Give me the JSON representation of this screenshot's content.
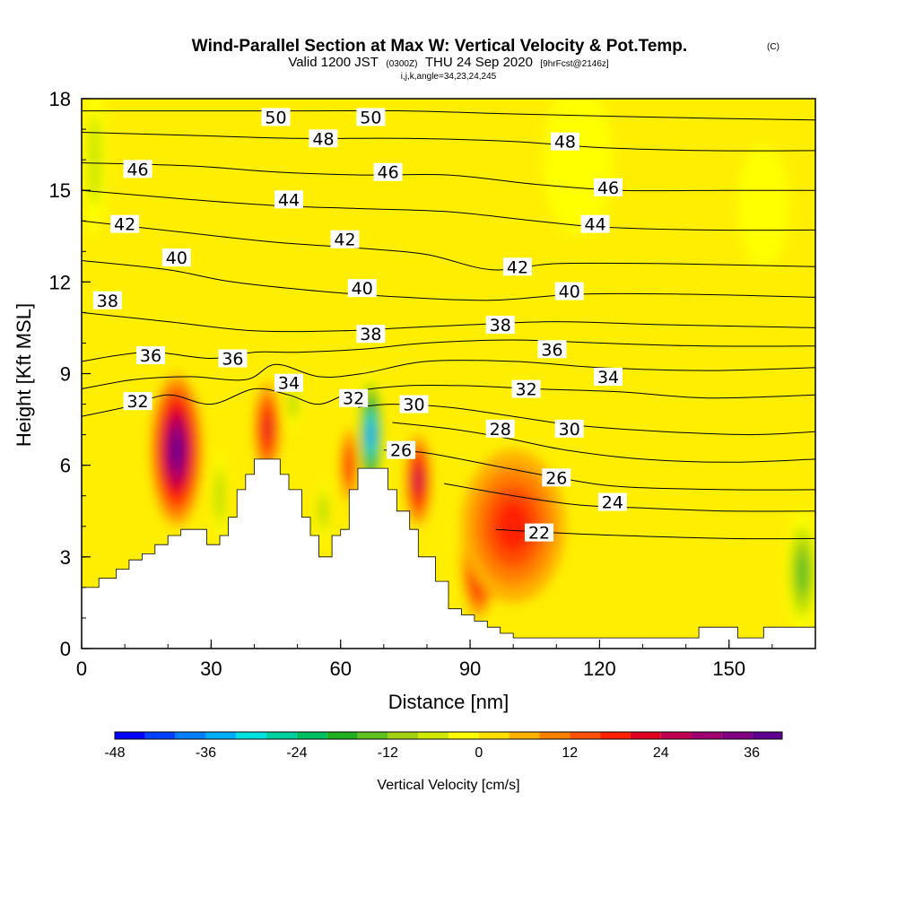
{
  "title": "Wind-Parallel Section at Max W: Vertical Velocity & Pot.Temp.",
  "title_mark": "(C)",
  "subtitle_parts": [
    "Valid 1200 JST",
    "(0300Z)",
    "THU 24 Sep 2020",
    "[9hrFcst@2146z]"
  ],
  "subtitle2": "i,j,k,angle=34,23,24,245",
  "chart_data": {
    "type": "heatmap",
    "title": "Wind-Parallel Section at Max W: Vertical Velocity & Pot.Temp.",
    "xlabel": "Distance [nm]",
    "ylabel": "Height [Kft MSL]",
    "xlim": [
      0,
      170
    ],
    "ylim": [
      0,
      18
    ],
    "xticks": [
      0,
      30,
      60,
      90,
      120,
      150
    ],
    "yticks": [
      0,
      3,
      6,
      9,
      12,
      15,
      18
    ],
    "colorbar": {
      "label": "Vertical Velocity [cm/s]",
      "min": -48,
      "max": 40,
      "step": 4,
      "tick_values": [
        -48,
        -36,
        -24,
        -12,
        0,
        12,
        24,
        36
      ],
      "colors": [
        "#0000ff",
        "#0040ff",
        "#0080ff",
        "#00b0ff",
        "#00e0e0",
        "#00d0a0",
        "#00c060",
        "#20b020",
        "#60c020",
        "#a0d010",
        "#d0e800",
        "#ffff00",
        "#ffe000",
        "#ffb000",
        "#ff8000",
        "#ff5000",
        "#ff2000",
        "#e00020",
        "#c00050",
        "#a00070",
        "#800080",
        "#600090"
      ]
    },
    "terrain": [
      [
        0,
        2
      ],
      [
        4,
        2
      ],
      [
        4,
        2.3
      ],
      [
        8,
        2.3
      ],
      [
        8,
        2.6
      ],
      [
        11,
        2.6
      ],
      [
        11,
        2.9
      ],
      [
        14,
        2.9
      ],
      [
        14,
        3.1
      ],
      [
        17,
        3.1
      ],
      [
        17,
        3.4
      ],
      [
        20,
        3.4
      ],
      [
        20,
        3.7
      ],
      [
        23,
        3.7
      ],
      [
        23,
        3.9
      ],
      [
        28,
        3.9
      ],
      [
        29,
        3.9
      ],
      [
        29,
        3.4
      ],
      [
        32,
        3.4
      ],
      [
        32,
        3.7
      ],
      [
        34,
        3.7
      ],
      [
        34,
        4.3
      ],
      [
        36,
        4.3
      ],
      [
        36,
        5.2
      ],
      [
        38,
        5.2
      ],
      [
        38,
        5.7
      ],
      [
        40,
        5.7
      ],
      [
        40,
        6.2
      ],
      [
        43,
        6.2
      ],
      [
        44,
        6.2
      ],
      [
        44,
        6.2
      ],
      [
        46,
        6.2
      ],
      [
        46,
        5.7
      ],
      [
        48,
        5.7
      ],
      [
        48,
        5.2
      ],
      [
        51,
        5.2
      ],
      [
        51,
        4.3
      ],
      [
        53,
        4.3
      ],
      [
        53,
        3.7
      ],
      [
        55,
        3.7
      ],
      [
        55,
        3.0
      ],
      [
        58,
        3.0
      ],
      [
        58,
        3.7
      ],
      [
        60,
        3.7
      ],
      [
        60,
        3.9
      ],
      [
        62,
        3.9
      ],
      [
        62,
        5.2
      ],
      [
        64,
        5.2
      ],
      [
        64,
        5.9
      ],
      [
        71,
        5.9
      ],
      [
        71,
        5.2
      ],
      [
        73,
        5.2
      ],
      [
        73,
        4.5
      ],
      [
        76,
        4.5
      ],
      [
        76,
        3.9
      ],
      [
        78,
        3.9
      ],
      [
        78,
        3.0
      ],
      [
        82,
        3.0
      ],
      [
        82,
        2.2
      ],
      [
        85,
        2.2
      ],
      [
        85,
        1.3
      ],
      [
        88,
        1.3
      ],
      [
        88,
        1.1
      ],
      [
        91,
        1.1
      ],
      [
        91,
        0.9
      ],
      [
        94,
        0.9
      ],
      [
        94,
        0.7
      ],
      [
        97,
        0.7
      ],
      [
        97,
        0.5
      ],
      [
        100,
        0.5
      ],
      [
        100,
        0.35
      ],
      [
        143,
        0.35
      ],
      [
        143,
        0.7
      ],
      [
        149,
        0.7
      ],
      [
        149,
        0.7
      ],
      [
        152,
        0.7
      ],
      [
        152,
        0.35
      ],
      [
        158,
        0.35
      ],
      [
        158,
        0.7
      ],
      [
        170,
        0.7
      ]
    ],
    "theta_contours": [
      {
        "level": 22,
        "points": [
          [
            96,
            3.9
          ],
          [
            108,
            3.8
          ],
          [
            125,
            3.7
          ],
          [
            150,
            3.6
          ],
          [
            170,
            3.6
          ]
        ]
      },
      {
        "level": 24,
        "points": [
          [
            84,
            5.4
          ],
          [
            100,
            5.0
          ],
          [
            115,
            4.7
          ],
          [
            130,
            4.6
          ],
          [
            150,
            4.5
          ],
          [
            170,
            4.5
          ]
        ]
      },
      {
        "level": 26,
        "points": [
          [
            70,
            6.5
          ],
          [
            80,
            6.4
          ],
          [
            95,
            6.0
          ],
          [
            110,
            5.6
          ],
          [
            125,
            5.3
          ],
          [
            150,
            5.2
          ],
          [
            170,
            5.2
          ]
        ]
      },
      {
        "level": 28,
        "points": [
          [
            72,
            7.4
          ],
          [
            85,
            7.2
          ],
          [
            98,
            6.9
          ],
          [
            112,
            6.5
          ],
          [
            130,
            6.2
          ],
          [
            150,
            6.1
          ],
          [
            170,
            6.2
          ]
        ]
      },
      {
        "level": 30,
        "points": [
          [
            64,
            7.9
          ],
          [
            72,
            8.0
          ],
          [
            85,
            7.9
          ],
          [
            100,
            7.6
          ],
          [
            115,
            7.3
          ],
          [
            135,
            7.1
          ],
          [
            155,
            7.0
          ],
          [
            170,
            7.1
          ]
        ]
      },
      {
        "level": 32,
        "points": [
          [
            0,
            7.6
          ],
          [
            10,
            7.9
          ],
          [
            20,
            8.3
          ],
          [
            30,
            8.0
          ],
          [
            40,
            8.5
          ],
          [
            48,
            8.3
          ],
          [
            55,
            8.0
          ],
          [
            63,
            8.4
          ],
          [
            75,
            8.6
          ],
          [
            90,
            8.6
          ],
          [
            105,
            8.5
          ],
          [
            125,
            8.4
          ],
          [
            145,
            8.2
          ],
          [
            170,
            8.3
          ]
        ]
      },
      {
        "level": 34,
        "points": [
          [
            0,
            8.5
          ],
          [
            12,
            8.8
          ],
          [
            25,
            8.9
          ],
          [
            38,
            8.8
          ],
          [
            45,
            9.3
          ],
          [
            55,
            8.9
          ],
          [
            65,
            9.0
          ],
          [
            80,
            9.4
          ],
          [
            100,
            9.4
          ],
          [
            120,
            9.2
          ],
          [
            145,
            9.1
          ],
          [
            170,
            9.2
          ]
        ]
      },
      {
        "level": 36,
        "points": [
          [
            0,
            9.4
          ],
          [
            15,
            9.7
          ],
          [
            30,
            9.5
          ],
          [
            40,
            9.7
          ],
          [
            50,
            9.7
          ],
          [
            65,
            9.8
          ],
          [
            80,
            10.0
          ],
          [
            100,
            10.1
          ],
          [
            120,
            10.0
          ],
          [
            145,
            9.9
          ],
          [
            170,
            9.9
          ]
        ]
      },
      {
        "level": 38,
        "points": [
          [
            0,
            11.0
          ],
          [
            20,
            10.7
          ],
          [
            40,
            10.4
          ],
          [
            60,
            10.4
          ],
          [
            75,
            10.5
          ],
          [
            90,
            10.6
          ],
          [
            110,
            10.7
          ],
          [
            135,
            10.6
          ],
          [
            170,
            10.5
          ]
        ]
      },
      {
        "level": 40,
        "points": [
          [
            0,
            12.7
          ],
          [
            20,
            12.4
          ],
          [
            35,
            12.0
          ],
          [
            55,
            11.7
          ],
          [
            75,
            11.5
          ],
          [
            95,
            11.4
          ],
          [
            115,
            11.6
          ],
          [
            140,
            11.6
          ],
          [
            170,
            11.5
          ]
        ]
      },
      {
        "level": 42,
        "points": [
          [
            0,
            14.0
          ],
          [
            25,
            13.6
          ],
          [
            45,
            13.3
          ],
          [
            65,
            13.1
          ],
          [
            80,
            12.9
          ],
          [
            95,
            12.4
          ],
          [
            110,
            12.6
          ],
          [
            135,
            12.6
          ],
          [
            170,
            12.5
          ]
        ]
      },
      {
        "level": 44,
        "points": [
          [
            0,
            15.0
          ],
          [
            25,
            14.7
          ],
          [
            45,
            14.5
          ],
          [
            65,
            14.4
          ],
          [
            85,
            14.3
          ],
          [
            105,
            14.0
          ],
          [
            120,
            13.8
          ],
          [
            145,
            13.7
          ],
          [
            170,
            13.7
          ]
        ]
      },
      {
        "level": 46,
        "points": [
          [
            0,
            15.9
          ],
          [
            25,
            15.8
          ],
          [
            45,
            15.6
          ],
          [
            65,
            15.5
          ],
          [
            85,
            15.5
          ],
          [
            105,
            15.2
          ],
          [
            125,
            15.0
          ],
          [
            150,
            15.0
          ],
          [
            170,
            15.0
          ]
        ]
      },
      {
        "level": 48,
        "points": [
          [
            0,
            16.9
          ],
          [
            25,
            16.8
          ],
          [
            50,
            16.7
          ],
          [
            75,
            16.7
          ],
          [
            100,
            16.6
          ],
          [
            120,
            16.4
          ],
          [
            145,
            16.3
          ],
          [
            170,
            16.3
          ]
        ]
      },
      {
        "level": 50,
        "points": [
          [
            0,
            17.6
          ],
          [
            25,
            17.6
          ],
          [
            50,
            17.6
          ],
          [
            75,
            17.6
          ],
          [
            100,
            17.5
          ],
          [
            130,
            17.4
          ],
          [
            170,
            17.3
          ]
        ]
      }
    ],
    "contour_labels": [
      {
        "text": "50",
        "x": 45,
        "y": 17.4
      },
      {
        "text": "50",
        "x": 67,
        "y": 17.4
      },
      {
        "text": "48",
        "x": 56,
        "y": 16.7
      },
      {
        "text": "48",
        "x": 112,
        "y": 16.6
      },
      {
        "text": "46",
        "x": 13,
        "y": 15.7
      },
      {
        "text": "46",
        "x": 71,
        "y": 15.6
      },
      {
        "text": "46",
        "x": 122,
        "y": 15.1
      },
      {
        "text": "44",
        "x": 48,
        "y": 14.7
      },
      {
        "text": "44",
        "x": 119,
        "y": 13.9
      },
      {
        "text": "42",
        "x": 10,
        "y": 13.9
      },
      {
        "text": "42",
        "x": 61,
        "y": 13.4
      },
      {
        "text": "42",
        "x": 101,
        "y": 12.5
      },
      {
        "text": "40",
        "x": 22,
        "y": 12.8
      },
      {
        "text": "40",
        "x": 65,
        "y": 11.8
      },
      {
        "text": "40",
        "x": 113,
        "y": 11.7
      },
      {
        "text": "38",
        "x": 6,
        "y": 11.4
      },
      {
        "text": "38",
        "x": 67,
        "y": 10.3
      },
      {
        "text": "38",
        "x": 97,
        "y": 10.6
      },
      {
        "text": "36",
        "x": 16,
        "y": 9.6
      },
      {
        "text": "36",
        "x": 35,
        "y": 9.5
      },
      {
        "text": "36",
        "x": 109,
        "y": 9.8
      },
      {
        "text": "34",
        "x": 48,
        "y": 8.7
      },
      {
        "text": "34",
        "x": 122,
        "y": 8.9
      },
      {
        "text": "32",
        "x": 13,
        "y": 8.1
      },
      {
        "text": "32",
        "x": 63,
        "y": 8.2
      },
      {
        "text": "32",
        "x": 103,
        "y": 8.5
      },
      {
        "text": "30",
        "x": 77,
        "y": 8.0
      },
      {
        "text": "30",
        "x": 113,
        "y": 7.2
      },
      {
        "text": "28",
        "x": 97,
        "y": 7.2
      },
      {
        "text": "26",
        "x": 74,
        "y": 6.5
      },
      {
        "text": "26",
        "x": 110,
        "y": 5.6
      },
      {
        "text": "24",
        "x": 123,
        "y": 4.8
      },
      {
        "text": "22",
        "x": 106,
        "y": 3.8
      }
    ],
    "updraft_cores": [
      {
        "x": 22,
        "y": 6.5,
        "rx": 6,
        "ry": 2.5,
        "peak_cm_s": 36
      },
      {
        "x": 43,
        "y": 7.2,
        "rx": 3,
        "ry": 1.5,
        "peak_cm_s": 20
      },
      {
        "x": 62,
        "y": 6.0,
        "rx": 2,
        "ry": 1.2,
        "peak_cm_s": 16
      },
      {
        "x": 78,
        "y": 5.5,
        "rx": 3,
        "ry": 1.5,
        "peak_cm_s": 26
      },
      {
        "x": 92,
        "y": 3.0,
        "rx": 4,
        "ry": 2,
        "peak_cm_s": 28
      },
      {
        "x": 100,
        "y": 4.0,
        "rx": 12,
        "ry": 2.5,
        "peak_cm_s": 16
      }
    ],
    "downdraft_cores": [
      {
        "x": 67,
        "y": 7.0,
        "rx": 3,
        "ry": 2.0,
        "peak_cm_s": -40
      },
      {
        "x": 49,
        "y": 8.0,
        "rx": 1.5,
        "ry": 0.8,
        "peak_cm_s": -12
      },
      {
        "x": 56,
        "y": 4.5,
        "rx": 1.5,
        "ry": 1,
        "peak_cm_s": -12
      },
      {
        "x": 32,
        "y": 5,
        "rx": 1.5,
        "ry": 1.5,
        "peak_cm_s": -12
      },
      {
        "x": 167,
        "y": 2.5,
        "rx": 4,
        "ry": 2,
        "peak_cm_s": -18
      },
      {
        "x": 3,
        "y": 16,
        "rx": 3,
        "ry": 2.5,
        "peak_cm_s": -8
      },
      {
        "x": 115,
        "y": 16,
        "rx": 8,
        "ry": 2.5,
        "peak_cm_s": -6
      },
      {
        "x": 158,
        "y": 14.5,
        "rx": 6,
        "ry": 2,
        "peak_cm_s": -6
      }
    ]
  }
}
